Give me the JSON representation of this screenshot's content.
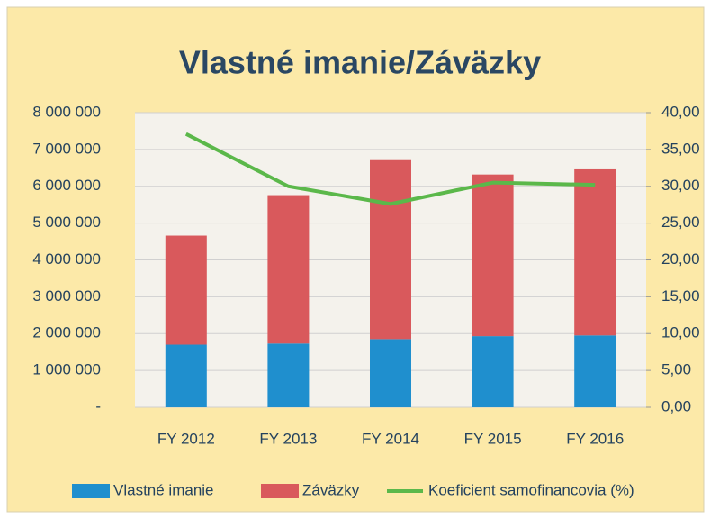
{
  "chart_data": {
    "type": "bar",
    "stacked": true,
    "title": "Vlastné imanie/Záväzky",
    "categories": [
      "FY 2012",
      "FY 2013",
      "FY 2014",
      "FY 2015",
      "FY 2016"
    ],
    "series": [
      {
        "name": "Vlastné imanie",
        "color": "#1f8fce",
        "values": [
          1700000,
          1730000,
          1850000,
          1930000,
          1950000
        ]
      },
      {
        "name": "Záväzky",
        "color": "#d9595c",
        "values": [
          2960000,
          4030000,
          4860000,
          4390000,
          4510000
        ]
      },
      {
        "name": "Koeficient samofinancovia (%)",
        "type": "line",
        "axis": "y2",
        "color": "#5bb84a",
        "values": [
          37.1,
          30.0,
          27.6,
          30.5,
          30.2
        ]
      }
    ],
    "ylim": [
      0,
      8000000
    ],
    "yticks": [
      {
        "value": 0,
        "label": "-"
      },
      {
        "value": 1000000,
        "label": "1 000 000"
      },
      {
        "value": 2000000,
        "label": "2 000 000"
      },
      {
        "value": 3000000,
        "label": "3 000 000"
      },
      {
        "value": 4000000,
        "label": "4 000 000"
      },
      {
        "value": 5000000,
        "label": "5 000 000"
      },
      {
        "value": 6000000,
        "label": "6 000 000"
      },
      {
        "value": 7000000,
        "label": "7 000 000"
      },
      {
        "value": 8000000,
        "label": "8 000 000"
      }
    ],
    "y2lim": [
      0,
      40
    ],
    "y2ticks": [
      {
        "value": 0,
        "label": "0,00"
      },
      {
        "value": 5,
        "label": "5,00"
      },
      {
        "value": 10,
        "label": "10,00"
      },
      {
        "value": 15,
        "label": "15,00"
      },
      {
        "value": 20,
        "label": "20,00"
      },
      {
        "value": 25,
        "label": "25,00"
      },
      {
        "value": 30,
        "label": "30,00"
      },
      {
        "value": 35,
        "label": "35,00"
      },
      {
        "value": 40,
        "label": "40,00"
      }
    ],
    "grid": true,
    "legend": "bottom"
  }
}
